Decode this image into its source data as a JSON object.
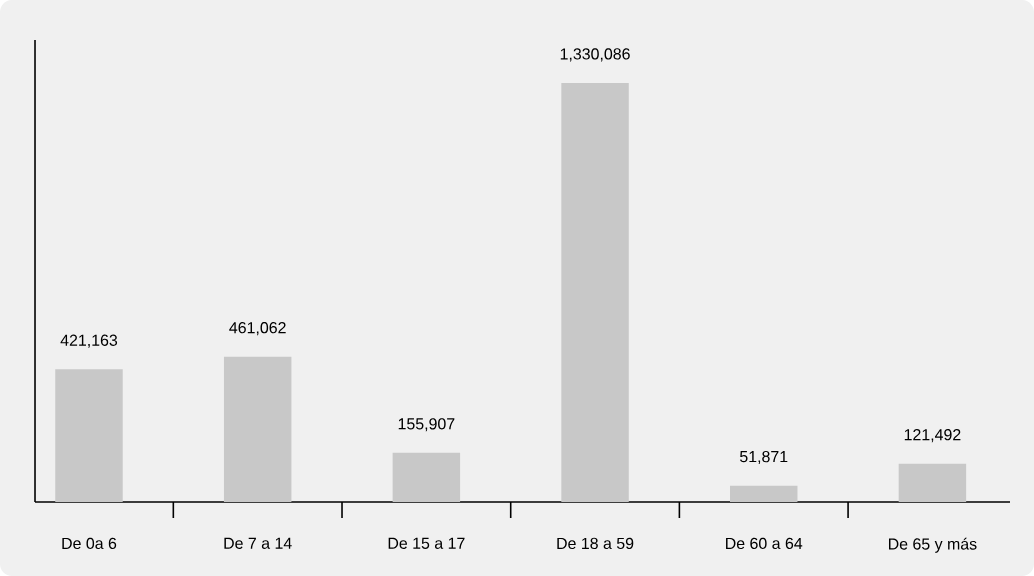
{
  "chart_data": {
    "type": "bar",
    "categories": [
      "De 0a 6",
      "De 7 a 14",
      "De 15 a 17",
      "De 18 a 59",
      "De 60 a 64",
      "De 65 y más"
    ],
    "values": [
      421163,
      461062,
      155907,
      1330086,
      51871,
      121492
    ],
    "value_labels": [
      "421,163",
      "461,062",
      "155,907",
      "1,330,086",
      "51,871",
      "121,492"
    ],
    "color": "#c8c8c8",
    "grid": false,
    "tick_labels": "x"
  }
}
